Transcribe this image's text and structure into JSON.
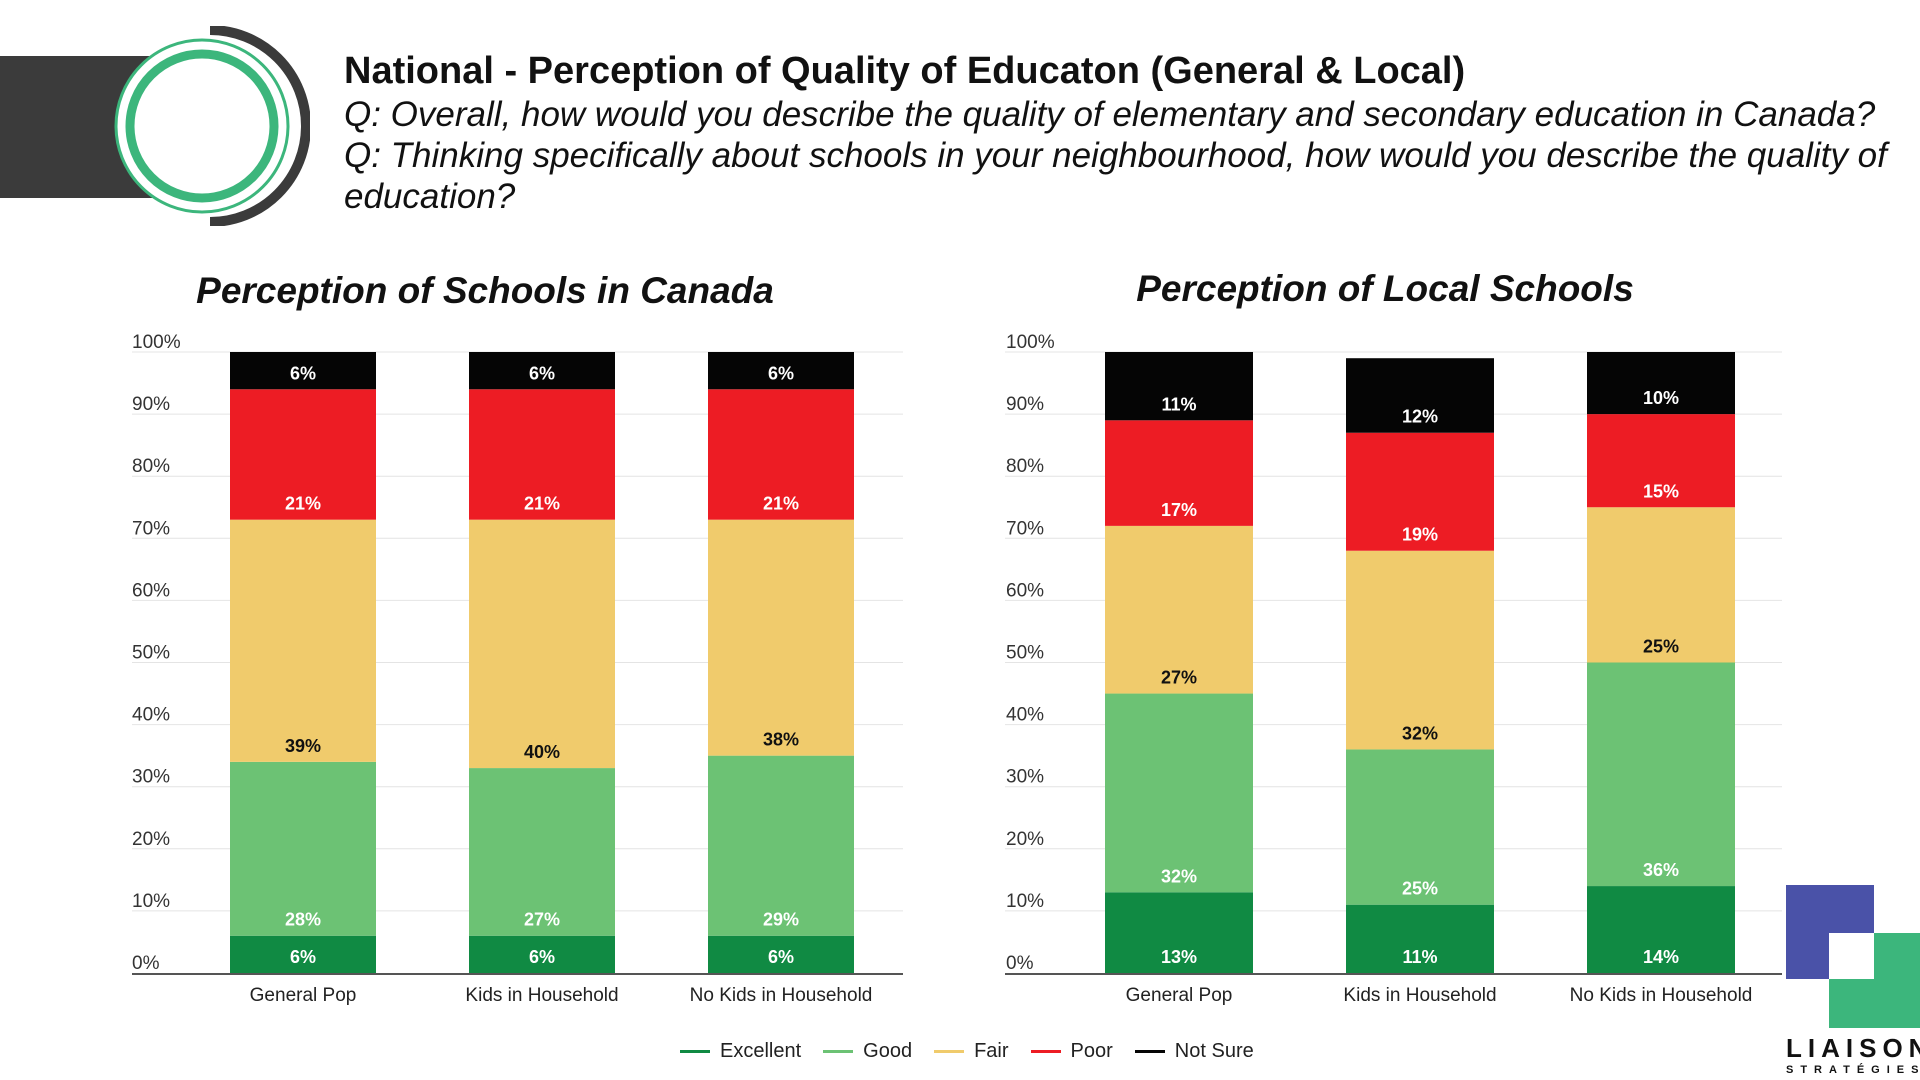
{
  "header": {
    "title": "National - Perception of Quality of Educaton (General & Local)",
    "q1": "Q: Overall, how would you describe the quality of elementary and secondary education in Canada?",
    "q2": "Q: Thinking specifically about schools in your neighbourhood, how would you describe the quality of",
    "q2_cont": "education?"
  },
  "legend": [
    {
      "label": "Excellent",
      "color": "#108a43"
    },
    {
      "label": "Good",
      "color": "#6cc274"
    },
    {
      "label": "Fair",
      "color": "#f0cb6c"
    },
    {
      "label": "Poor",
      "color": "#ed1c24"
    },
    {
      "label": "Not Sure",
      "color": "#050505"
    }
  ],
  "logo": {
    "name": "LIAISON",
    "sub": "STRATÉGIES"
  },
  "chart_data": [
    {
      "type": "bar",
      "stacked": true,
      "title": "Perception of Schools in Canada",
      "categories": [
        "General Pop",
        "Kids in Household",
        "No Kids in Household"
      ],
      "yticks": [
        "0%",
        "10%",
        "20%",
        "30%",
        "40%",
        "50%",
        "60%",
        "70%",
        "80%",
        "90%",
        "100%"
      ],
      "ylim": [
        0,
        100
      ],
      "series": [
        {
          "name": "Excellent",
          "values": [
            6,
            6,
            6
          ]
        },
        {
          "name": "Good",
          "values": [
            28,
            27,
            29
          ]
        },
        {
          "name": "Fair",
          "values": [
            39,
            40,
            38
          ]
        },
        {
          "name": "Poor",
          "values": [
            21,
            21,
            21
          ]
        },
        {
          "name": "Not Sure",
          "values": [
            6,
            6,
            6
          ]
        }
      ]
    },
    {
      "type": "bar",
      "stacked": true,
      "title": "Perception of Local Schools",
      "categories": [
        "General Pop",
        "Kids in Household",
        "No Kids in Household"
      ],
      "yticks": [
        "0%",
        "10%",
        "20%",
        "30%",
        "40%",
        "50%",
        "60%",
        "70%",
        "80%",
        "90%",
        "100%"
      ],
      "ylim": [
        0,
        100
      ],
      "series": [
        {
          "name": "Excellent",
          "values": [
            13,
            11,
            14
          ]
        },
        {
          "name": "Good",
          "values": [
            32,
            25,
            36
          ]
        },
        {
          "name": "Fair",
          "values": [
            27,
            32,
            25
          ]
        },
        {
          "name": "Poor",
          "values": [
            17,
            19,
            15
          ]
        },
        {
          "name": "Not Sure",
          "values": [
            11,
            12,
            10
          ]
        }
      ]
    }
  ]
}
